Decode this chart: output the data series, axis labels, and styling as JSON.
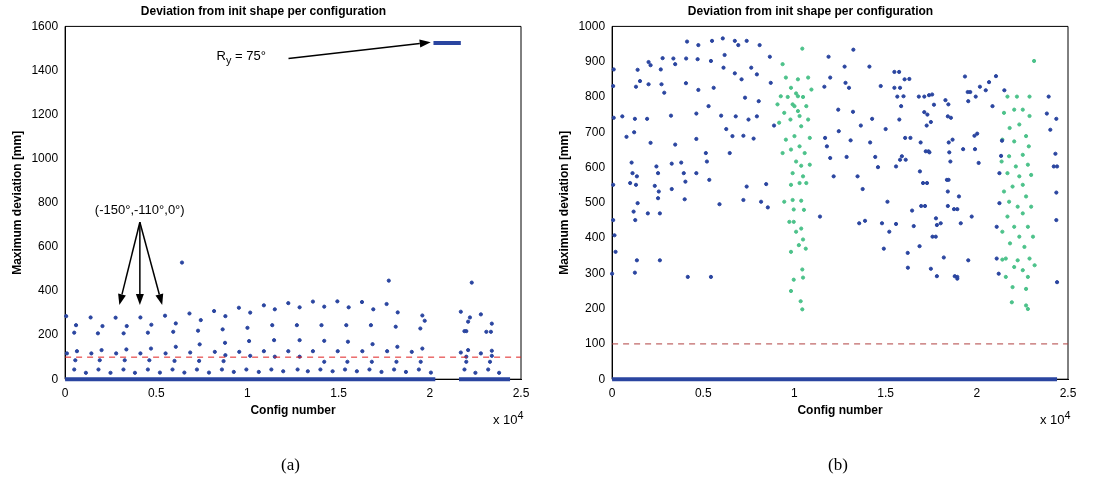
{
  "chart_data": [
    {
      "type": "scatter",
      "title": "Deviation from init shape per configuration",
      "xlabel": "Config number",
      "ylabel": "Maximum deviation [mm]",
      "xlim": [
        0,
        2.5
      ],
      "xticks": [
        0,
        0.5,
        1,
        1.5,
        2,
        2.5
      ],
      "ylim": [
        0,
        1600
      ],
      "yticks": [
        0,
        200,
        400,
        600,
        800,
        1000,
        1200,
        1400,
        1600
      ],
      "marker": "circle",
      "series": [
        {
          "type": "scatter",
          "color": "#2a45a0",
          "x": [
            0.006,
            0.05,
            0.06,
            0.01,
            0.065,
            0.056,
            0.05,
            0.114,
            0.14,
            0.18,
            0.205,
            0.144,
            0.2,
            0.19,
            0.183,
            0.249,
            0.277,
            0.321,
            0.338,
            0.28,
            0.336,
            0.327,
            0.32,
            0.383,
            0.413,
            0.454,
            0.473,
            0.413,
            0.471,
            0.462,
            0.454,
            0.52,
            0.548,
            0.607,
            0.593,
            0.641,
            0.551,
            0.607,
            0.6,
            0.589,
            0.654,
            0.682,
            0.744,
            0.729,
            0.738,
            0.686,
            0.735,
            0.723,
            0.789,
            0.817,
            0.879,
            0.864,
            0.877,
            0.821,
            0.879,
            0.869,
            0.86,
            0.925,
            0.953,
            1.015,
            1.0,
            1.009,
            0.955,
            1.015,
            0.994,
            1.062,
            1.09,
            1.15,
            1.136,
            1.146,
            1.09,
            1.15,
            1.131,
            1.196,
            1.224,
            1.286,
            1.271,
            1.286,
            1.224,
            1.286,
            1.275,
            1.331,
            1.359,
            1.421,
            1.406,
            1.421,
            1.359,
            1.421,
            1.4,
            1.467,
            1.493,
            1.555,
            1.542,
            1.551,
            1.495,
            1.548,
            1.535,
            1.6,
            1.628,
            1.69,
            1.677,
            1.686,
            1.63,
            1.682,
            1.669,
            1.735,
            1.763,
            1.775,
            1.824,
            1.813,
            1.822,
            1.766,
            1.817,
            1.804,
            1.869,
            1.959,
            1.972,
            1.948,
            1.959,
            1.901,
            1.95,
            1.94,
            2.006,
            2.17,
            2.17,
            2.19,
            2.2,
            2.21,
            2.22,
            2.23,
            2.21,
            2.2,
            2.2,
            2.19,
            2.25,
            2.28,
            2.28,
            2.31,
            2.335,
            2.34,
            2.34,
            2.34,
            2.33,
            2.32,
            2.38
          ],
          "values": [
            286,
            211,
            245,
            117,
            127,
            86,
            44,
            29,
            280,
            208,
            241,
            117,
            132,
            86,
            44,
            29,
            279,
            208,
            241,
            117,
            135,
            86,
            44,
            29,
            280,
            211,
            247,
            117,
            139,
            86,
            44,
            30,
            288,
            253,
            215,
            529,
            117,
            147,
            83,
            44,
            30,
            298,
            268,
            220,
            158,
            121,
            83,
            44,
            30,
            309,
            286,
            226,
            165,
            124,
            109,
            82,
            44,
            33,
            324,
            302,
            233,
            173,
            124,
            106,
            44,
            33,
            335,
            317,
            245,
            177,
            127,
            102,
            44,
            36,
            345,
            326,
            245,
            177,
            127,
            102,
            44,
            36,
            352,
            329,
            245,
            174,
            127,
            79,
            44,
            36,
            353,
            326,
            245,
            170,
            127,
            79,
            44,
            36,
            350,
            317,
            245,
            159,
            127,
            79,
            44,
            33,
            341,
            447,
            303,
            238,
            147,
            127,
            79,
            44,
            33,
            289,
            265,
            230,
            139,
            124,
            79,
            44,
            30,
            306,
            121,
            218,
            218,
            261,
            280,
            438,
            132,
            102,
            79,
            44,
            29,
            294,
            117,
            215,
            215,
            252,
            129,
            106,
            79,
            44,
            29
          ]
        },
        {
          "type": "line",
          "color": "#2a45a0",
          "marker": "none",
          "x": [
            0,
            2.03,
            2.1,
            2.16,
            2.44
          ],
          "values": [
            0,
            0,
            null,
            0,
            0
          ]
        },
        {
          "type": "line",
          "color": "#2a45a0",
          "marker": "none",
          "x": [
            2.02,
            2.17
          ],
          "values": [
            1525,
            1525
          ]
        }
      ],
      "ref_lines": [
        {
          "axis": "y",
          "value": 100,
          "color": "#e02020",
          "line_style": "dashed"
        }
      ],
      "annotations": [
        "x 10$^{4}$",
        "(a)",
        "R$_{y}$ = 75°",
        "(-150°,-110°,0°)"
      ]
    },
    {
      "type": "scatter",
      "title": "Deviation from init shape per configuration",
      "xlabel": "Config number",
      "ylabel": "Maximum deviation [mm]",
      "xlim": [
        0,
        2.5
      ],
      "xticks": [
        0,
        0.5,
        1,
        1.5,
        2,
        2.5
      ],
      "ylim": [
        0,
        1000
      ],
      "yticks": [
        0,
        100,
        200,
        300,
        400,
        500,
        600,
        700,
        800,
        900,
        1000
      ],
      "marker": "circle",
      "series": [
        {
          "type": "scatter",
          "color": "#2a45a0",
          "x": [
            0.009,
            0.006,
            0.009,
            0.006,
            0.006,
            0.013,
            0.019,
            0,
            0.056,
            0.079,
            0.125,
            0.131,
            0.14,
            0.153,
            0.107,
            0.112,
            0.136,
            0.131,
            0.099,
            0.14,
            0.118,
            0.127,
            0.136,
            0.125,
            0.121,
            0.192,
            0.2,
            0.211,
            0.2,
            0.196,
            0.211,
            0.234,
            0.243,
            0.252,
            0.256,
            0.252,
            0.262,
            0.262,
            0.277,
            0.267,
            0.271,
            0.286,
            0.323,
            0.327,
            0.327,
            0.346,
            0.336,
            0.346,
            0.379,
            0.393,
            0.402,
            0.398,
            0.411,
            0.406,
            0.415,
            0.405,
            0.462,
            0.462,
            0.473,
            0.469,
            0.473,
            0.462,
            0.514,
            0.52,
            0.533,
            0.542,
            0.529,
            0.542,
            0.548,
            0.557,
            0.589,
            0.598,
            0.607,
            0.617,
            0.611,
            0.626,
            0.645,
            0.66,
            0.673,
            0.692,
            0.673,
            0.678,
            0.71,
            0.72,
            0.729,
            0.738,
            0.748,
            0.738,
            0.72,
            0.763,
            0.776,
            0.794,
            0.794,
            0.804,
            0.809,
            0.817,
            0.845,
            0.854,
            0.865,
            0.87,
            0.888,
            1.14,
            1.164,
            1.187,
            1.196,
            1.168,
            1.178,
            1.196,
            1.215,
            1.24,
            1.243,
            1.275,
            1.28,
            1.286,
            1.299,
            1.308,
            1.323,
            1.321,
            1.346,
            1.355,
            1.387,
            1.364,
            1.374,
            1.411,
            1.415,
            1.426,
            1.443,
            1.458,
            1.473,
            1.48,
            1.49,
            1.5,
            1.51,
            1.52,
            1.548,
            1.548,
            1.564,
            1.575,
            1.557,
            1.557,
            1.579,
            1.607,
            1.604,
            1.621,
            1.622,
            1.645,
            1.654,
            1.682,
            1.692,
            1.688,
            1.705,
            1.72,
            1.729,
            1.738,
            1.748,
            1.695,
            1.686,
            1.748,
            1.757,
            1.776,
            1.781,
            1.819,
            1.828,
            1.841,
            1.836,
            1.841,
            1.846,
            1.875,
            1.879,
            1.893,
            1.902,
            1.912,
            1.935,
            1.95,
            1.953,
            1.925,
            1.953,
            1.972,
            1.987,
            1.994,
            1.99,
            1.574,
            1.579,
            1.585,
            1.598,
            1.63,
            1.636,
            1.589,
            1.61,
            1.712,
            1.712,
            1.725,
            1.735,
            1.74,
            1.727,
            1.716,
            1.755,
            1.765,
            1.775,
            1.781,
            1.802,
            1.844,
            1.858,
            1.867,
            1.849,
            1.855,
            1.841,
            1.845,
            1.893,
            1.893,
            1.964,
            2.002,
            2.017,
            2.01,
            2.049,
            2.067,
            2.086,
            2.105,
            2.151,
            2.138,
            2.133,
            2.124,
            2.124,
            2.109,
            2.109,
            2.12,
            2.394,
            2.384,
            2.403,
            2.431,
            2.44,
            2.436,
            2.436,
            2.44,
            2.436,
            2.422
          ],
          "values": [
            878,
            831,
            741,
            551,
            451,
            408,
            361,
            299,
            745,
            687,
            738,
            829,
            877,
            845,
            614,
            584,
            575,
            551,
            556,
            499,
            475,
            451,
            337,
            302,
            700,
            738,
            899,
            890,
            836,
            470,
            670,
            548,
            603,
            584,
            532,
            513,
            470,
            337,
            910,
            878,
            836,
            812,
            747,
            539,
            611,
            665,
            909,
            893,
            614,
            584,
            560,
            510,
            957,
            909,
            290,
            839,
            753,
            681,
            947,
            907,
            820,
            584,
            641,
            617,
            565,
            290,
            774,
            902,
            959,
            826,
            496,
            747,
            966,
            919,
            883,
            709,
            641,
            689,
            959,
            947,
            867,
            745,
            850,
            690,
            798,
            959,
            736,
            546,
            508,
            883,
            682,
            864,
            745,
            788,
            947,
            503,
            553,
            487,
            914,
            840,
            719,
            461,
            829,
            914,
            855,
            684,
            660,
            627,
            575,
            764,
            703,
            886,
            840,
            630,
            826,
            677,
            934,
            758,
            575,
            442,
            449,
            719,
            539,
            886,
            671,
            738,
            630,
            601,
            831,
            442,
            370,
            709,
            503,
            418,
            871,
            826,
            801,
            736,
            440,
            603,
            622,
            684,
            850,
            358,
            316,
            478,
            434,
            801,
            671,
            589,
            556,
            646,
            750,
            805,
            729,
            491,
            377,
            313,
            404,
            456,
            437,
            345,
            791,
            745,
            565,
            491,
            671,
            482,
            292,
            285,
            518,
            442,
            858,
            814,
            788,
            652,
            337,
            461,
            690,
            801,
            652,
            871,
            826,
            774,
            802,
            851,
            684,
            632,
            622,
            801,
            757,
            719,
            646,
            643,
            556,
            491,
            807,
            778,
            404,
            292,
            442,
            779,
            741,
            679,
            643,
            617,
            532,
            565,
            482,
            290,
            814,
            696,
            829,
            613,
            819,
            842,
            774,
            859,
            819,
            676,
            633,
            584,
            499,
            432,
            342,
            299,
            801,
            753,
            707,
            639,
            603,
            529,
            451,
            275,
            738,
            603
          ]
        },
        {
          "type": "scatter",
          "color": "#4cc28a",
          "x": [
            1.043,
            0.935,
            0.953,
            1.019,
            1.075,
            0.981,
            1.093,
            0.925,
            0.963,
            1.009,
            1.047,
            0.99,
            0.907,
            1.065,
            0.944,
            1.019,
            0.978,
            1.075,
            0.916,
            1.037,
            1.0,
            1.084,
            0.953,
            1.028,
            0.981,
            1.056,
            1.009,
            0.935,
            1.037,
            1.084,
            0.99,
            1.047,
            1.028,
            1.065,
            0.981,
            0.944,
            0.99,
            1.037,
            1.052,
            0.996,
            0.972,
            0.996,
            1.037,
            1.009,
            1.047,
            1.024,
            0.981,
            1.062,
            1.043,
            0.996,
            1.047,
            0.981,
            1.034,
            1.043,
            1.019,
            1.0,
            1.028,
            2.314,
            2.168,
            2.22,
            2.289,
            2.149,
            2.205,
            2.252,
            2.289,
            2.18,
            2.233,
            2.27,
            2.14,
            2.205,
            2.285,
            2.177,
            2.252,
            2.136,
            2.214,
            2.28,
            2.168,
            2.233,
            2.298,
            2.196,
            2.252,
            2.149,
            2.27,
            2.177,
            2.224,
            2.298,
            2.168,
            2.252,
            2.205,
            2.28,
            2.14,
            2.233,
            2.308,
            2.182,
            2.261,
            2.159,
            2.224,
            2.289,
            2.14,
            2.205,
            2.252,
            2.317,
            2.159,
            2.28,
            2.196,
            2.27,
            2.192,
            2.27,
            2.28
          ],
          "values": [
            937,
            893,
            855,
            850,
            855,
            826,
            821,
            802,
            800,
            810,
            800,
            779,
            779,
            774,
            755,
            760,
            736,
            736,
            727,
            717,
            689,
            684,
            679,
            660,
            651,
            641,
            617,
            641,
            605,
            608,
            584,
            575,
            556,
            556,
            551,
            503,
            508,
            506,
            480,
            481,
            446,
            446,
            427,
            418,
            396,
            380,
            361,
            370,
            311,
            282,
            288,
            250,
            221,
            198,
            802,
            774,
            746,
            902,
            801,
            801,
            801,
            755,
            764,
            764,
            746,
            712,
            722,
            689,
            679,
            674,
            660,
            632,
            636,
            617,
            603,
            608,
            584,
            575,
            579,
            546,
            551,
            532,
            518,
            503,
            489,
            489,
            461,
            470,
            432,
            432,
            418,
            404,
            404,
            385,
            375,
            342,
            337,
            342,
            339,
            318,
            309,
            323,
            290,
            290,
            261,
            256,
            218,
            209,
            199
          ]
        },
        {
          "type": "line",
          "color": "#2a45a0",
          "marker": "none",
          "x": [
            0,
            2.44
          ],
          "values": [
            0,
            0
          ]
        }
      ],
      "ref_lines": [
        {
          "axis": "y",
          "value": 100,
          "color": "#b04040",
          "line_style": "dashed"
        }
      ],
      "annotations": [
        "x 10$^{4}$",
        "(b)"
      ]
    }
  ]
}
